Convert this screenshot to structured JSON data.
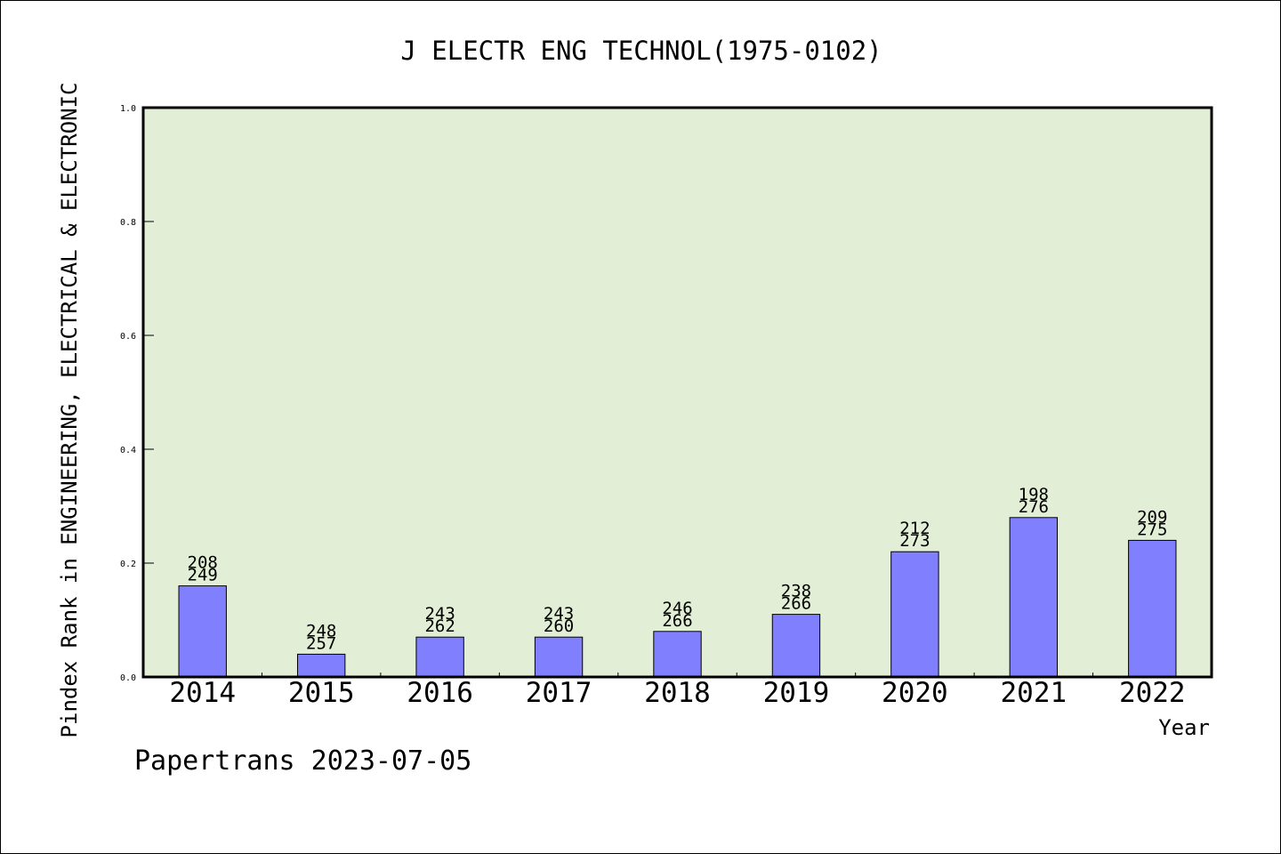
{
  "chart_data": {
    "type": "bar",
    "title": "J ELECTR ENG TECHNOL(1975-0102)",
    "xlabel": "Year",
    "ylabel": "Pindex Rank in ENGINEERING, ELECTRICAL & ELECTRONIC",
    "categories": [
      "2014",
      "2015",
      "2016",
      "2017",
      "2018",
      "2019",
      "2020",
      "2021",
      "2022"
    ],
    "values": [
      0.16,
      0.04,
      0.07,
      0.07,
      0.08,
      0.11,
      0.22,
      0.28,
      0.24
    ],
    "rank_labels": [
      "208",
      "248",
      "243",
      "243",
      "246",
      "238",
      "212",
      "198",
      "209"
    ],
    "total_labels": [
      "249",
      "257",
      "262",
      "260",
      "266",
      "266",
      "273",
      "276",
      "275"
    ],
    "ylim": [
      0,
      1
    ],
    "yticks": [
      "0.0",
      "0.2",
      "0.4",
      "0.6",
      "0.8",
      "1.0"
    ],
    "grid": false,
    "colors": {
      "plot_background": "#e2efd6",
      "bar_fill": "#8080ff",
      "axis": "#000000"
    }
  },
  "footer": {
    "credit": "Papertrans 2023-07-05"
  }
}
